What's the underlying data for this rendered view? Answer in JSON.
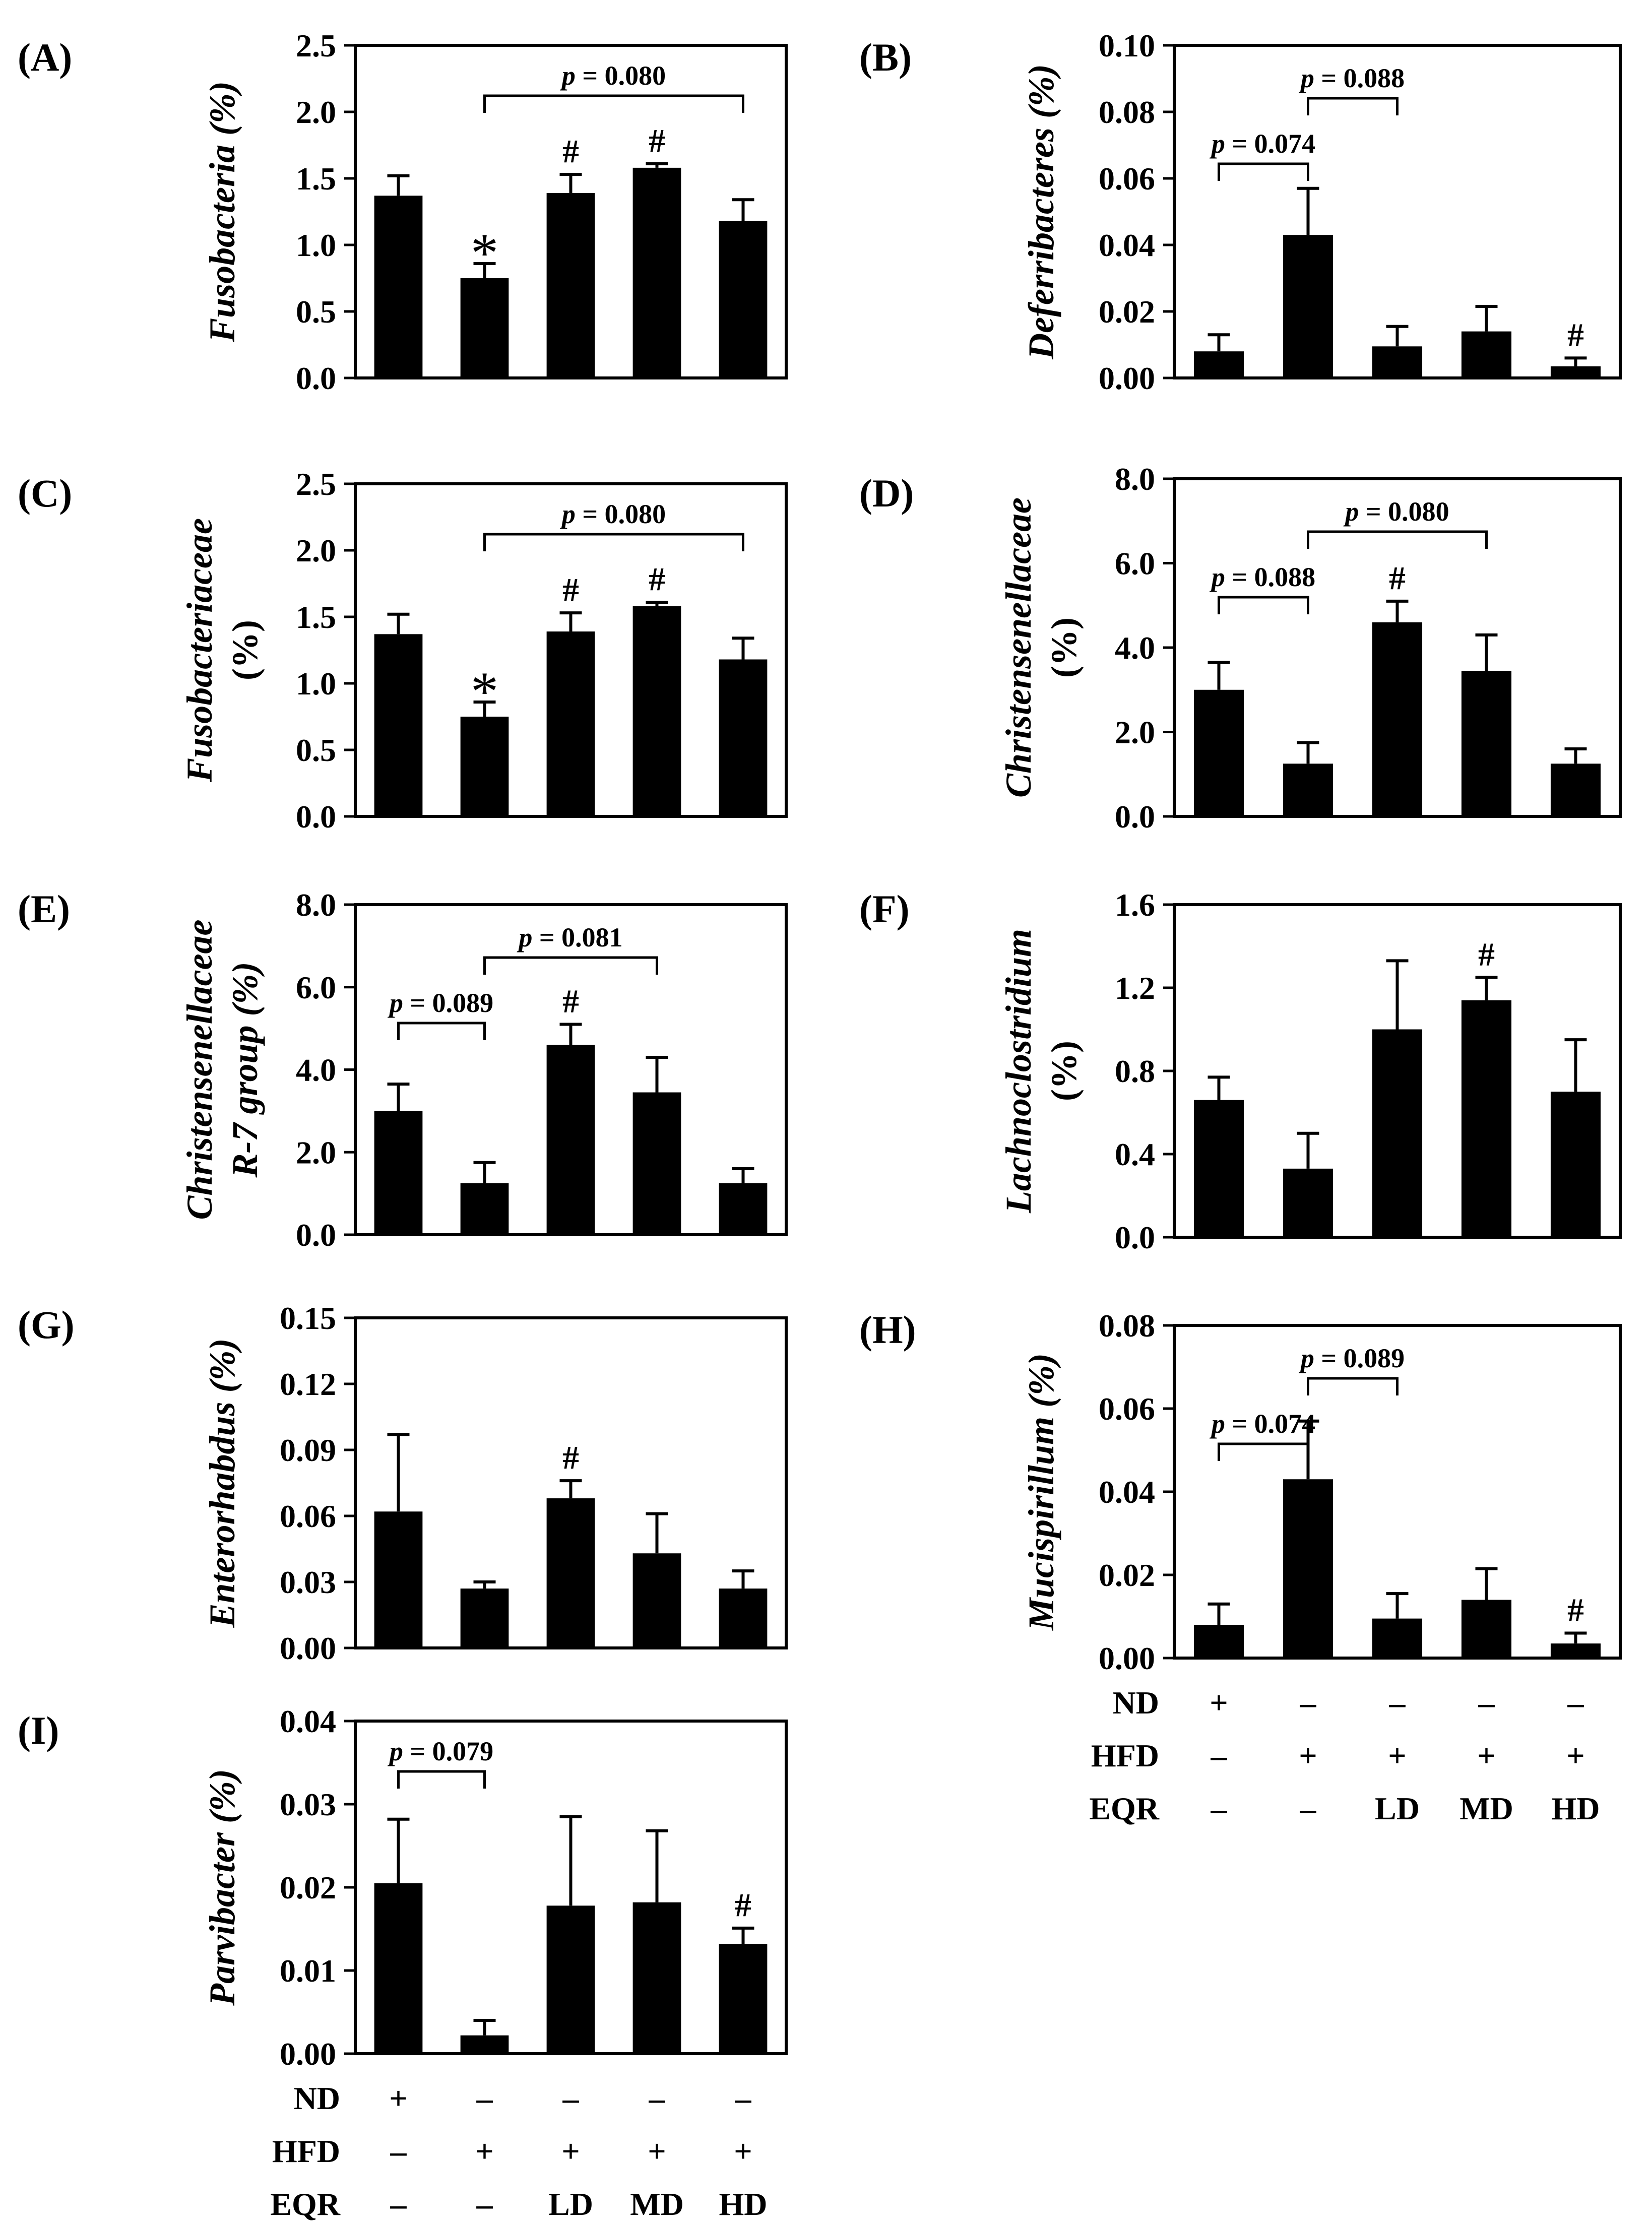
{
  "chart_data": [
    {
      "label": "(A)",
      "type": "bar",
      "ylabel": [
        "Fusobacteria (%)"
      ],
      "ylabel_italic": [
        true
      ],
      "ylim": [
        0,
        2.5
      ],
      "ticks": [
        "0.0",
        "0.5",
        "1.0",
        "1.5",
        "2.0",
        "2.5"
      ],
      "categories": [
        "ND",
        "HFD",
        "HFD+LD",
        "HFD+MD",
        "HFD+HD"
      ],
      "values": [
        1.37,
        0.75,
        1.39,
        1.58,
        1.18
      ],
      "errors": [
        0.15,
        0.11,
        0.14,
        0.03,
        0.16
      ],
      "marks": [
        "",
        "*",
        "#",
        "#",
        ""
      ],
      "brackets": [
        {
          "from": 1,
          "to": 4,
          "label": "p = 0.080"
        }
      ]
    },
    {
      "label": "(B)",
      "type": "bar",
      "ylabel": [
        "Deferribacteres (%)"
      ],
      "ylabel_italic": [
        true
      ],
      "ylim": [
        0,
        0.1
      ],
      "ticks": [
        "0.00",
        "0.02",
        "0.04",
        "0.06",
        "0.08",
        "0.10"
      ],
      "categories": [
        "ND",
        "HFD",
        "HFD+LD",
        "HFD+MD",
        "HFD+HD"
      ],
      "values": [
        0.008,
        0.043,
        0.0095,
        0.014,
        0.0035
      ],
      "errors": [
        0.005,
        0.014,
        0.006,
        0.0075,
        0.0025
      ],
      "marks": [
        "",
        "",
        "",
        "",
        "#"
      ],
      "brackets": [
        {
          "from": 0,
          "to": 1,
          "label": "p = 0.074"
        },
        {
          "from": 1,
          "to": 2,
          "label": "p = 0.088"
        }
      ]
    },
    {
      "label": "(C)",
      "type": "bar",
      "ylabel": [
        "Fusobacteriaceae",
        "(%)"
      ],
      "ylabel_italic": [
        true,
        false
      ],
      "ylim": [
        0,
        2.5
      ],
      "ticks": [
        "0.0",
        "0.5",
        "1.0",
        "1.5",
        "2.0",
        "2.5"
      ],
      "categories": [
        "ND",
        "HFD",
        "HFD+LD",
        "HFD+MD",
        "HFD+HD"
      ],
      "values": [
        1.37,
        0.75,
        1.39,
        1.58,
        1.18
      ],
      "errors": [
        0.15,
        0.11,
        0.14,
        0.03,
        0.16
      ],
      "marks": [
        "",
        "*",
        "#",
        "#",
        ""
      ],
      "brackets": [
        {
          "from": 1,
          "to": 4,
          "label": "p = 0.080"
        }
      ]
    },
    {
      "label": "(D)",
      "type": "bar",
      "ylabel": [
        "Christensenellaceae",
        "(%)"
      ],
      "ylabel_italic": [
        true,
        false
      ],
      "ylim": [
        0,
        8.0
      ],
      "ticks": [
        "0.0",
        "2.0",
        "4.0",
        "6.0",
        "8.0"
      ],
      "categories": [
        "ND",
        "HFD",
        "HFD+LD",
        "HFD+MD",
        "HFD+HD"
      ],
      "values": [
        3.0,
        1.25,
        4.6,
        3.45,
        1.25
      ],
      "errors": [
        0.65,
        0.5,
        0.5,
        0.85,
        0.35
      ],
      "marks": [
        "",
        "",
        "#",
        "",
        ""
      ],
      "brackets": [
        {
          "from": 0,
          "to": 1,
          "label": "p = 0.088"
        },
        {
          "from": 1,
          "to": 3,
          "label": "p = 0.080"
        }
      ]
    },
    {
      "label": "(E)",
      "type": "bar",
      "ylabel": [
        "Christensenellaceae",
        "R-7 group (%)"
      ],
      "ylabel_italic": [
        true,
        true
      ],
      "ylim": [
        0,
        8.0
      ],
      "ticks": [
        "0.0",
        "2.0",
        "4.0",
        "6.0",
        "8.0"
      ],
      "categories": [
        "ND",
        "HFD",
        "HFD+LD",
        "HFD+MD",
        "HFD+HD"
      ],
      "values": [
        3.0,
        1.25,
        4.6,
        3.45,
        1.25
      ],
      "errors": [
        0.65,
        0.5,
        0.5,
        0.85,
        0.35
      ],
      "marks": [
        "",
        "",
        "#",
        "",
        ""
      ],
      "brackets": [
        {
          "from": 0,
          "to": 1,
          "label": "p = 0.089"
        },
        {
          "from": 1,
          "to": 3,
          "label": "p = 0.081"
        }
      ]
    },
    {
      "label": "(F)",
      "type": "bar",
      "ylabel": [
        "Lachnoclostridium",
        "(%)"
      ],
      "ylabel_italic": [
        true,
        false
      ],
      "ylim": [
        0,
        1.6
      ],
      "ticks": [
        "0.0",
        "0.4",
        "0.8",
        "1.2",
        "1.6"
      ],
      "categories": [
        "ND",
        "HFD",
        "HFD+LD",
        "HFD+MD",
        "HFD+HD"
      ],
      "values": [
        0.66,
        0.33,
        1.0,
        1.14,
        0.7
      ],
      "errors": [
        0.11,
        0.17,
        0.33,
        0.11,
        0.25
      ],
      "marks": [
        "",
        "",
        "",
        "#",
        ""
      ],
      "brackets": []
    },
    {
      "label": "(G)",
      "type": "bar",
      "ylabel": [
        "Enterorhabdus (%)"
      ],
      "ylabel_italic": [
        true
      ],
      "ylim": [
        0,
        0.15
      ],
      "ticks": [
        "0.00",
        "0.03",
        "0.06",
        "0.09",
        "0.12",
        "0.15"
      ],
      "categories": [
        "ND",
        "HFD",
        "HFD+LD",
        "HFD+MD",
        "HFD+HD"
      ],
      "values": [
        0.062,
        0.027,
        0.068,
        0.043,
        0.027
      ],
      "errors": [
        0.035,
        0.003,
        0.008,
        0.018,
        0.008
      ],
      "marks": [
        "",
        "",
        "#",
        "",
        ""
      ],
      "brackets": []
    },
    {
      "label": "(H)",
      "type": "bar",
      "ylabel": [
        "Mucispirillum (%)"
      ],
      "ylabel_italic": [
        true
      ],
      "ylim": [
        0,
        0.08
      ],
      "ticks": [
        "0.00",
        "0.02",
        "0.04",
        "0.06",
        "0.08"
      ],
      "categories": [
        "ND",
        "HFD",
        "HFD+LD",
        "HFD+MD",
        "HFD+HD"
      ],
      "values": [
        0.008,
        0.043,
        0.0095,
        0.014,
        0.0035
      ],
      "errors": [
        0.005,
        0.014,
        0.006,
        0.0075,
        0.0025
      ],
      "marks": [
        "",
        "",
        "",
        "",
        "#"
      ],
      "brackets": [
        {
          "from": 0,
          "to": 1,
          "label": "p = 0.074"
        },
        {
          "from": 1,
          "to": 2,
          "label": "p = 0.089"
        }
      ]
    },
    {
      "label": "(I)",
      "type": "bar",
      "ylabel": [
        "Parvibacter (%)"
      ],
      "ylabel_italic": [
        true
      ],
      "ylim": [
        0,
        0.04
      ],
      "ticks": [
        "0.00",
        "0.01",
        "0.02",
        "0.03",
        "0.04"
      ],
      "categories": [
        "ND",
        "HFD",
        "HFD+LD",
        "HFD+MD",
        "HFD+HD"
      ],
      "values": [
        0.0205,
        0.0022,
        0.0178,
        0.0182,
        0.0132
      ],
      "errors": [
        0.0077,
        0.0018,
        0.0107,
        0.0086,
        0.0019
      ],
      "marks": [
        "",
        "",
        "",
        "",
        "#"
      ],
      "brackets": [
        {
          "from": 0,
          "to": 1,
          "label": "p = 0.079"
        }
      ]
    }
  ],
  "treatment_legend": {
    "row_labels": [
      "ND",
      "HFD",
      "EQR"
    ],
    "rows": [
      [
        "+",
        "–",
        "–",
        "–",
        "–"
      ],
      [
        "–",
        "+",
        "+",
        "+",
        "+"
      ],
      [
        "–",
        "–",
        "LD",
        "MD",
        "HD"
      ]
    ]
  },
  "colors": {
    "bar": "#000000",
    "background": "#ffffff",
    "axis": "#000000"
  }
}
